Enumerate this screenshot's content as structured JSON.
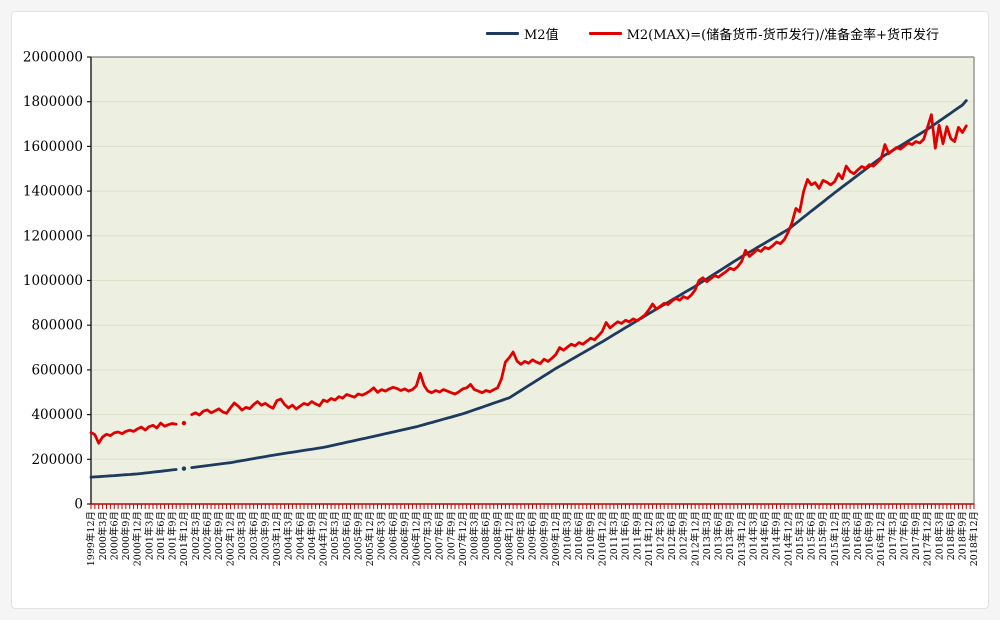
{
  "page": {
    "outer_background": "#f5f5f5",
    "card_background": "#ffffff",
    "card_border": "#e2e2e2"
  },
  "legend": {
    "position": "top",
    "items": [
      {
        "label": "M2值",
        "color": "#1f3a5f"
      },
      {
        "label": "M2(MAX)=(储备货币-货币发行)/准备金率+货币发行",
        "color": "#e00000"
      }
    ]
  },
  "chart_data": {
    "type": "line",
    "title": "",
    "xlabel": "",
    "ylabel": "",
    "grid": true,
    "legend_position": "top",
    "plot_style": {
      "plot_bg": "#edf0e0",
      "grid_color": "#dce0c9",
      "border_color": "#7f7f7f",
      "left_axis_color": "#1a1a1a",
      "bottom_axis_color": "#c00000",
      "tick_color_x": "#c00000",
      "tick_color_y": "#1a1a1a"
    },
    "y_axis": {
      "min": 0,
      "max": 2000000,
      "step": 200000,
      "tick_labels": [
        "0",
        "200000",
        "400000",
        "600000",
        "800000",
        "1000000",
        "1200000",
        "1400000",
        "1600000",
        "1800000",
        "2000000"
      ]
    },
    "x_axis": {
      "unit": "month",
      "start": "1999-12",
      "end": "2018-12",
      "months_total": 229,
      "label_every_n_months": 3,
      "tick_labels": [
        "1999年12月",
        "2000年3月",
        "2000年6月",
        "2000年9月",
        "2000年12月",
        "2001年3月",
        "2001年6月",
        "2001年9月",
        "2001年12月",
        "2002年3月",
        "2002年6月",
        "2002年9月",
        "2002年12月",
        "2003年3月",
        "2003年6月",
        "2003年9月",
        "2003年12月",
        "2004年3月",
        "2004年6月",
        "2004年9月",
        "2004年12月",
        "2005年3月",
        "2005年6月",
        "2005年9月",
        "2005年12月",
        "2006年3月",
        "2006年6月",
        "2006年9月",
        "2006年12月",
        "2007年3月",
        "2007年6月",
        "2007年9月",
        "2007年12月",
        "2008年3月",
        "2008年6月",
        "2008年9月",
        "2008年12月",
        "2009年3月",
        "2009年6月",
        "2009年9月",
        "2009年12月",
        "2010年3月",
        "2010年6月",
        "2010年9月",
        "2010年12月",
        "2011年3月",
        "2011年6月",
        "2011年9月",
        "2011年12月",
        "2012年3月",
        "2012年6月",
        "2012年9月",
        "2012年12月",
        "2013年3月",
        "2013年6月",
        "2013年9月",
        "2013年12月",
        "2014年3月",
        "2014年6月",
        "2014年9月",
        "2014年12月",
        "2015年3月",
        "2015年6月",
        "2015年9月",
        "2015年12月",
        "2016年3月",
        "2016年6月",
        "2016年9月",
        "2016年12月",
        "2017年3月",
        "2017年6月",
        "2017年9月",
        "2017年12月",
        "2018年3月",
        "2018年6月",
        "2018年9月",
        "2018年12月"
      ]
    },
    "series": [
      {
        "name": "M2值",
        "color": "#1f3a5f",
        "line_width": 2.8,
        "values": [
          119898,
          121124,
          122350,
          123576,
          124802,
          126028,
          127254,
          128480,
          129706,
          130932,
          132158,
          133384,
          134610,
          136584,
          138559,
          140533,
          142507,
          144482,
          146456,
          148430,
          150405,
          152379,
          154353,
          null,
          158302,
          null,
          162753,
          164978,
          167203,
          169429,
          171654,
          173879,
          176105,
          178330,
          180556,
          182781,
          185007,
          188025,
          191043,
          194061,
          197079,
          200097,
          203115,
          206133,
          209151,
          212169,
          215187,
          218205,
          221223,
          223888,
          226554,
          229219,
          231885,
          234550,
          237215,
          239881,
          242546,
          245212,
          247877,
          250543,
          253208,
          257004,
          260799,
          264595,
          268391,
          272186,
          275982,
          279778,
          283573,
          287369,
          291165,
          294960,
          298756,
          302658,
          306560,
          310461,
          314363,
          318265,
          322167,
          326069,
          329970,
          333872,
          337774,
          341676,
          345578,
          350400,
          355222,
          360044,
          364866,
          369688,
          374510,
          379332,
          384154,
          388976,
          393798,
          398620,
          403442,
          409419,
          415396,
          421373,
          427350,
          433327,
          439304,
          445281,
          451258,
          457235,
          463212,
          469189,
          475167,
          486089,
          497010,
          507932,
          518853,
          529775,
          540696,
          551618,
          562539,
          573461,
          584382,
          595304,
          606225,
          616194,
          626163,
          636132,
          646101,
          656070,
          666039,
          676008,
          685977,
          695946,
          705915,
          715884,
          725852,
          736330,
          746808,
          757286,
          767764,
          778242,
          788720,
          799198,
          809676,
          820154,
          830632,
          841110,
          851591,
          861805,
          872019,
          882233,
          892447,
          902661,
          912875,
          923089,
          933303,
          943517,
          953731,
          963945,
          974159,
          985190,
          996220,
          1007251,
          1018281,
          1029312,
          1040342,
          1051373,
          1062403,
          1073434,
          1084464,
          1095495,
          1106525,
          1116679,
          1126833,
          1136987,
          1147141,
          1157295,
          1167449,
          1177603,
          1187757,
          1197911,
          1208065,
          1218219,
          1228375,
          1242034,
          1255692,
          1269351,
          1283009,
          1296668,
          1310326,
          1323985,
          1337643,
          1351302,
          1364960,
          1378619,
          1392278,
          1405427,
          1418576,
          1431725,
          1444874,
          1458023,
          1471172,
          1484321,
          1497470,
          1510619,
          1523768,
          1536917,
          1550067,
          1560626,
          1571184,
          1581743,
          1592301,
          1602860,
          1613418,
          1623977,
          1634535,
          1645094,
          1655652,
          1666211,
          1676769,
          1688792,
          1700815,
          1712838,
          1724861,
          1736885,
          1748908,
          1760931,
          1772954,
          1784977,
          1805000
        ]
      },
      {
        "name": "M2(MAX)=(储备货币-货币发行)/准备金率+货币发行",
        "color": "#e00000",
        "line_width": 2.8,
        "values": [
          320000,
          310000,
          272000,
          300000,
          312000,
          306000,
          318000,
          322000,
          315000,
          325000,
          330000,
          325000,
          336000,
          344000,
          331000,
          346000,
          352000,
          340000,
          362000,
          348000,
          355000,
          360000,
          357000,
          null,
          362000,
          null,
          400000,
          408000,
          398000,
          415000,
          421000,
          408000,
          416000,
          426000,
          412000,
          406000,
          430000,
          452000,
          438000,
          420000,
          432000,
          427000,
          445000,
          458000,
          442000,
          450000,
          438000,
          428000,
          462000,
          470000,
          445000,
          430000,
          442000,
          425000,
          438000,
          450000,
          444000,
          458000,
          448000,
          440000,
          465000,
          458000,
          472000,
          465000,
          480000,
          474000,
          490000,
          484000,
          478000,
          492000,
          487000,
          495000,
          505000,
          520000,
          500000,
          512000,
          505000,
          515000,
          522000,
          517000,
          508000,
          515000,
          505000,
          512000,
          528000,
          585000,
          530000,
          505000,
          498000,
          508000,
          501000,
          512000,
          505000,
          498000,
          492000,
          502000,
          515000,
          520000,
          535000,
          512000,
          505000,
          498000,
          508000,
          502000,
          512000,
          520000,
          560000,
          635000,
          655000,
          680000,
          640000,
          625000,
          638000,
          630000,
          645000,
          635000,
          628000,
          648000,
          638000,
          652000,
          668000,
          700000,
          688000,
          702000,
          715000,
          708000,
          722000,
          715000,
          728000,
          742000,
          735000,
          752000,
          772000,
          812000,
          788000,
          802000,
          815000,
          808000,
          822000,
          815000,
          828000,
          820000,
          832000,
          845000,
          868000,
          895000,
          872000,
          885000,
          898000,
          892000,
          908000,
          920000,
          912000,
          928000,
          920000,
          935000,
          958000,
          1000000,
          1012000,
          995000,
          1008000,
          1022000,
          1015000,
          1028000,
          1040000,
          1055000,
          1048000,
          1062000,
          1085000,
          1135000,
          1108000,
          1122000,
          1138000,
          1130000,
          1148000,
          1142000,
          1155000,
          1172000,
          1165000,
          1182000,
          1215000,
          1258000,
          1322000,
          1308000,
          1398000,
          1452000,
          1428000,
          1438000,
          1412000,
          1448000,
          1440000,
          1428000,
          1442000,
          1478000,
          1455000,
          1512000,
          1488000,
          1478000,
          1495000,
          1510000,
          1502000,
          1518000,
          1512000,
          1528000,
          1545000,
          1608000,
          1568000,
          1582000,
          1595000,
          1588000,
          1602000,
          1615000,
          1608000,
          1622000,
          1615000,
          1632000,
          1685000,
          1742000,
          1592000,
          1695000,
          1612000,
          1688000,
          1635000,
          1622000,
          1685000,
          1662000,
          1692000
        ]
      }
    ]
  }
}
